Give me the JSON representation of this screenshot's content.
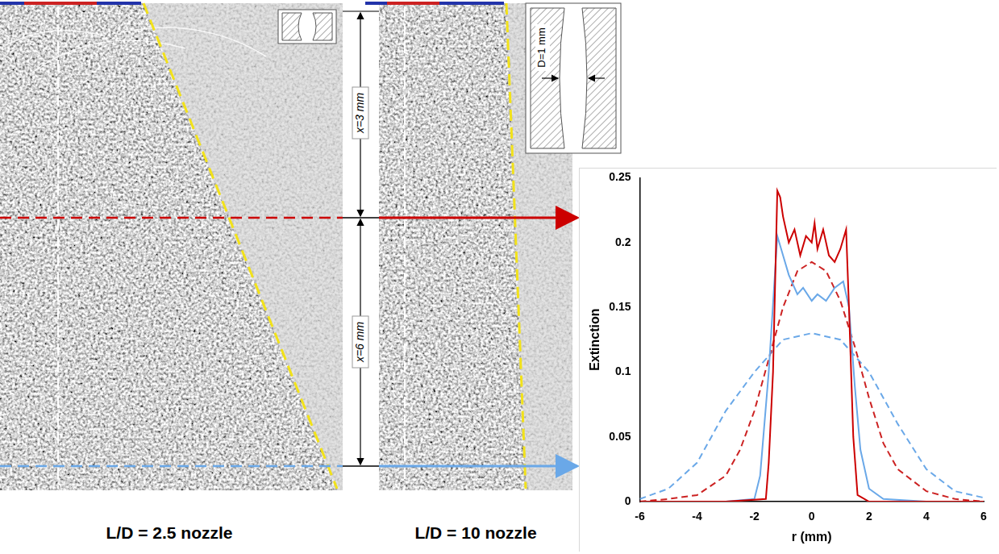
{
  "chart_data": {
    "type": "line",
    "xlabel": "r (mm)",
    "ylabel": "Extinction",
    "xlim": [
      -6,
      6
    ],
    "xticks": [
      -6,
      -4,
      -2,
      0,
      2,
      4,
      6
    ],
    "ylim": [
      0,
      0.25
    ],
    "yticks": [
      0,
      0.05,
      0.1,
      0.15,
      0.2,
      0.25
    ],
    "grid": false,
    "series": [
      {
        "color": "#cc0000",
        "line_style": "solid",
        "x": [
          -6,
          -3,
          -1.6,
          -1.5,
          -1.35,
          -1.2,
          -1.1,
          -1.0,
          -0.8,
          -0.6,
          -0.4,
          -0.2,
          0,
          0.1,
          0.2,
          0.4,
          0.6,
          0.8,
          1.0,
          1.2,
          1.3,
          1.45,
          1.6,
          2,
          4,
          6
        ],
        "values": [
          0,
          0,
          0.002,
          0.03,
          0.1,
          0.24,
          0.235,
          0.22,
          0.2,
          0.21,
          0.19,
          0.205,
          0.2,
          0.215,
          0.195,
          0.21,
          0.19,
          0.185,
          0.195,
          0.21,
          0.15,
          0.05,
          0.005,
          0,
          0,
          0
        ]
      },
      {
        "color": "#6aa8e8",
        "line_style": "solid",
        "x": [
          -6,
          -3,
          -2,
          -1.8,
          -1.5,
          -1.2,
          -1.0,
          -0.8,
          -0.5,
          -0.3,
          0,
          0.2,
          0.5,
          0.8,
          1.1,
          1.3,
          1.5,
          1.7,
          2.0,
          2.5,
          4,
          6
        ],
        "values": [
          0,
          0,
          0.002,
          0.02,
          0.1,
          0.205,
          0.19,
          0.175,
          0.16,
          0.165,
          0.155,
          0.16,
          0.155,
          0.165,
          0.17,
          0.15,
          0.09,
          0.04,
          0.01,
          0.002,
          0,
          0
        ]
      },
      {
        "color": "#cc2222",
        "line_style": "dashed",
        "x": [
          -6,
          -5,
          -4,
          -3,
          -2.5,
          -2,
          -1.5,
          -1,
          -0.5,
          0,
          0.5,
          1,
          1.5,
          2,
          2.5,
          3,
          4,
          5,
          6
        ],
        "values": [
          0,
          0.002,
          0.005,
          0.02,
          0.04,
          0.07,
          0.11,
          0.15,
          0.178,
          0.185,
          0.178,
          0.155,
          0.12,
          0.08,
          0.045,
          0.025,
          0.008,
          0.002,
          0
        ]
      },
      {
        "color": "#6aa8e8",
        "line_style": "dashed",
        "x": [
          -6,
          -5,
          -4,
          -3,
          -2,
          -1,
          0,
          1,
          2,
          3,
          4,
          5,
          6
        ],
        "values": [
          0.002,
          0.01,
          0.03,
          0.07,
          0.1,
          0.125,
          0.13,
          0.125,
          0.1,
          0.06,
          0.025,
          0.008,
          0.003
        ]
      }
    ]
  },
  "panels": [
    {
      "label": "L/D = 2.5 nozzle"
    },
    {
      "label": "L/D = 10 nozzle",
      "inset_label": "D=1 mm"
    }
  ],
  "annotations": [
    "x=3 mm",
    "x=6 mm"
  ]
}
